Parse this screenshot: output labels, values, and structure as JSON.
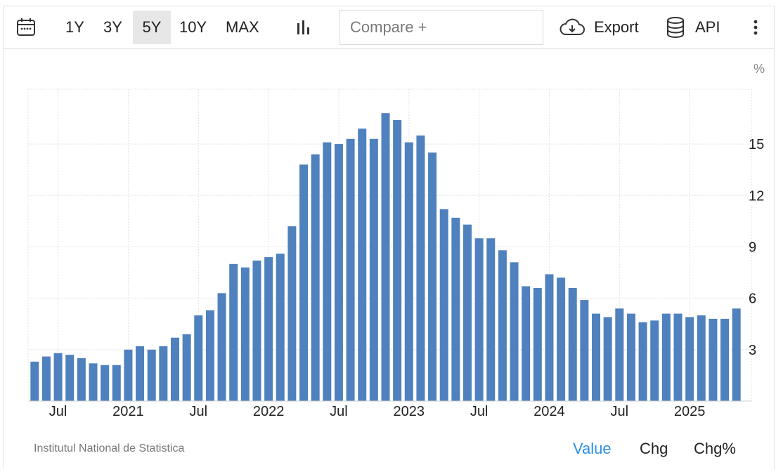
{
  "toolbar": {
    "ranges": [
      "1Y",
      "3Y",
      "5Y",
      "10Y",
      "MAX"
    ],
    "active_range": "5Y",
    "compare_placeholder": "Compare +",
    "export_label": "Export",
    "api_label": "API"
  },
  "chart_data": {
    "type": "bar",
    "unit_label": "%",
    "color": "#4e81bd",
    "ylim": [
      0,
      18.2
    ],
    "yticks": [
      3,
      6,
      9,
      12,
      15
    ],
    "grid": true,
    "x_labels": [
      {
        "label": "Jul",
        "index": 2
      },
      {
        "label": "2021",
        "index": 8
      },
      {
        "label": "Jul",
        "index": 14
      },
      {
        "label": "2022",
        "index": 20
      },
      {
        "label": "Jul",
        "index": 26
      },
      {
        "label": "2023",
        "index": 32
      },
      {
        "label": "Jul",
        "index": 38
      },
      {
        "label": "2024",
        "index": 44
      },
      {
        "label": "Jul",
        "index": 50
      },
      {
        "label": "2025",
        "index": 56
      }
    ],
    "values": [
      2.3,
      2.6,
      2.8,
      2.7,
      2.5,
      2.2,
      2.1,
      2.1,
      3.0,
      3.2,
      3.0,
      3.2,
      3.7,
      3.9,
      5.0,
      5.3,
      6.3,
      8.0,
      7.8,
      8.2,
      8.4,
      8.6,
      10.2,
      13.8,
      14.4,
      15.1,
      15.0,
      15.3,
      15.9,
      15.3,
      16.8,
      16.4,
      15.1,
      15.5,
      14.5,
      11.2,
      10.7,
      10.3,
      9.5,
      9.5,
      8.8,
      8.1,
      6.7,
      6.6,
      7.4,
      7.2,
      6.6,
      5.9,
      5.1,
      4.9,
      5.4,
      5.1,
      4.6,
      4.7,
      5.1,
      5.1,
      4.9,
      5.0,
      4.8,
      4.8,
      5.4
    ]
  },
  "footer": {
    "source": "Institutul National de Statistica",
    "tabs": [
      "Value",
      "Chg",
      "Chg%"
    ],
    "active_tab": "Value"
  }
}
